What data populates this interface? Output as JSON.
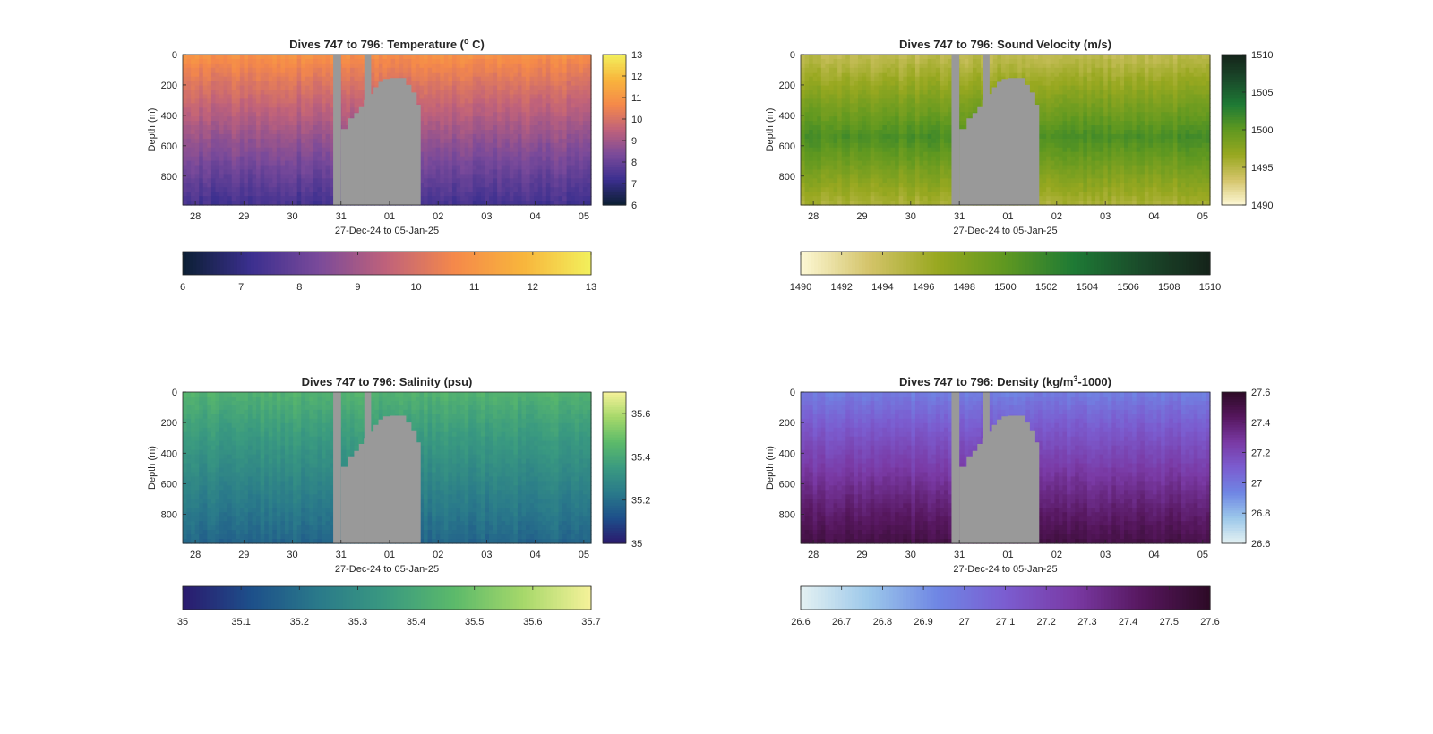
{
  "chart_data": [
    {
      "type": "heatmap",
      "title": "Dives 747 to 796: Temperature (",
      "title_sup": "o",
      "title_end": " C)",
      "ylabel": "Depth (m)",
      "xlabel": "27-Dec-24 to 05-Jan-25",
      "x_ticks": [
        "28",
        "29",
        "30",
        "31",
        "01",
        "02",
        "03",
        "04",
        "05"
      ],
      "y_ticks": [
        "0",
        "200",
        "400",
        "600",
        "800"
      ],
      "ylim": [
        990,
        0
      ],
      "colorbar_side_ticks": [
        "13",
        "12",
        "11",
        "10",
        "9",
        "8",
        "7",
        "6"
      ],
      "colorbar_bottom_ticks": [
        "6",
        "7",
        "8",
        "9",
        "10",
        "11",
        "12",
        "13"
      ],
      "clim": [
        6,
        13
      ],
      "colormap": [
        "#0b1f33",
        "#3b2f8f",
        "#7a4a9a",
        "#c0627a",
        "#f5894a",
        "#f8b53c",
        "#f2f05c"
      ],
      "surface_value": 10.9,
      "bottom_value": 7.3
    },
    {
      "type": "heatmap",
      "title": "Dives 747 to 796: Sound Velocity (m/s)",
      "title_sup": "",
      "title_end": "",
      "ylabel": "Depth (m)",
      "xlabel": "27-Dec-24 to 05-Jan-25",
      "x_ticks": [
        "28",
        "29",
        "30",
        "31",
        "01",
        "02",
        "03",
        "04",
        "05"
      ],
      "y_ticks": [
        "0",
        "200",
        "400",
        "600",
        "800"
      ],
      "ylim": [
        990,
        0
      ],
      "colorbar_side_ticks": [
        "1510",
        "1505",
        "1500",
        "1495",
        "1490"
      ],
      "colorbar_bottom_ticks": [
        "1490",
        "1492",
        "1494",
        "1496",
        "1498",
        "1500",
        "1502",
        "1504",
        "1506",
        "1508",
        "1510"
      ],
      "clim": [
        1490,
        1510
      ],
      "colormap": [
        "#fdf8d5",
        "#d4c46a",
        "#98a820",
        "#5f9820",
        "#1e7a35",
        "#1a4a2a",
        "#15231a"
      ],
      "surface_value": 1495.5,
      "bottom_value": 1494.5
    },
    {
      "type": "heatmap",
      "title": "Dives 747 to 796: Salinity (psu)",
      "title_sup": "",
      "title_end": "",
      "ylabel": "Depth (m)",
      "xlabel": "27-Dec-24 to 05-Jan-25",
      "x_ticks": [
        "28",
        "29",
        "30",
        "31",
        "01",
        "02",
        "03",
        "04",
        "05"
      ],
      "y_ticks": [
        "0",
        "200",
        "400",
        "600",
        "800"
      ],
      "ylim": [
        990,
        0
      ],
      "colorbar_side_ticks": [
        "35.6",
        "35.4",
        "35.2",
        "35"
      ],
      "colorbar_bottom_ticks": [
        "35",
        "35.1",
        "35.2",
        "35.3",
        "35.4",
        "35.5",
        "35.6",
        "35.7"
      ],
      "clim": [
        35,
        35.7
      ],
      "colormap": [
        "#2b1a6e",
        "#1d4f8a",
        "#2a7a8a",
        "#3a9a80",
        "#5cba6a",
        "#a6d86a",
        "#f6f29a"
      ],
      "surface_value": 35.44,
      "bottom_value": 35.18
    },
    {
      "type": "heatmap",
      "title": "Dives 747 to 796: Density (kg/m",
      "title_sup": "3",
      "title_end": "-1000)",
      "ylabel": "Depth (m)",
      "xlabel": "27-Dec-24 to 05-Jan-25",
      "x_ticks": [
        "28",
        "29",
        "30",
        "31",
        "01",
        "02",
        "03",
        "04",
        "05"
      ],
      "y_ticks": [
        "0",
        "200",
        "400",
        "600",
        "800"
      ],
      "ylim": [
        990,
        0
      ],
      "colorbar_side_ticks": [
        "27.6",
        "27.4",
        "27.2",
        "27",
        "26.8",
        "26.6"
      ],
      "colorbar_bottom_ticks": [
        "26.6",
        "26.7",
        "26.8",
        "26.9",
        "27",
        "27.1",
        "27.2",
        "27.3",
        "27.4",
        "27.5",
        "27.6"
      ],
      "clim": [
        26.6,
        27.6
      ],
      "colormap": [
        "#e4f1f2",
        "#9cc8ea",
        "#6f86e4",
        "#7b5dd0",
        "#7a3aa5",
        "#56175e",
        "#2d0a26"
      ],
      "surface_value": 26.96,
      "bottom_value": 27.5
    }
  ],
  "missing_data_color": "#999999"
}
